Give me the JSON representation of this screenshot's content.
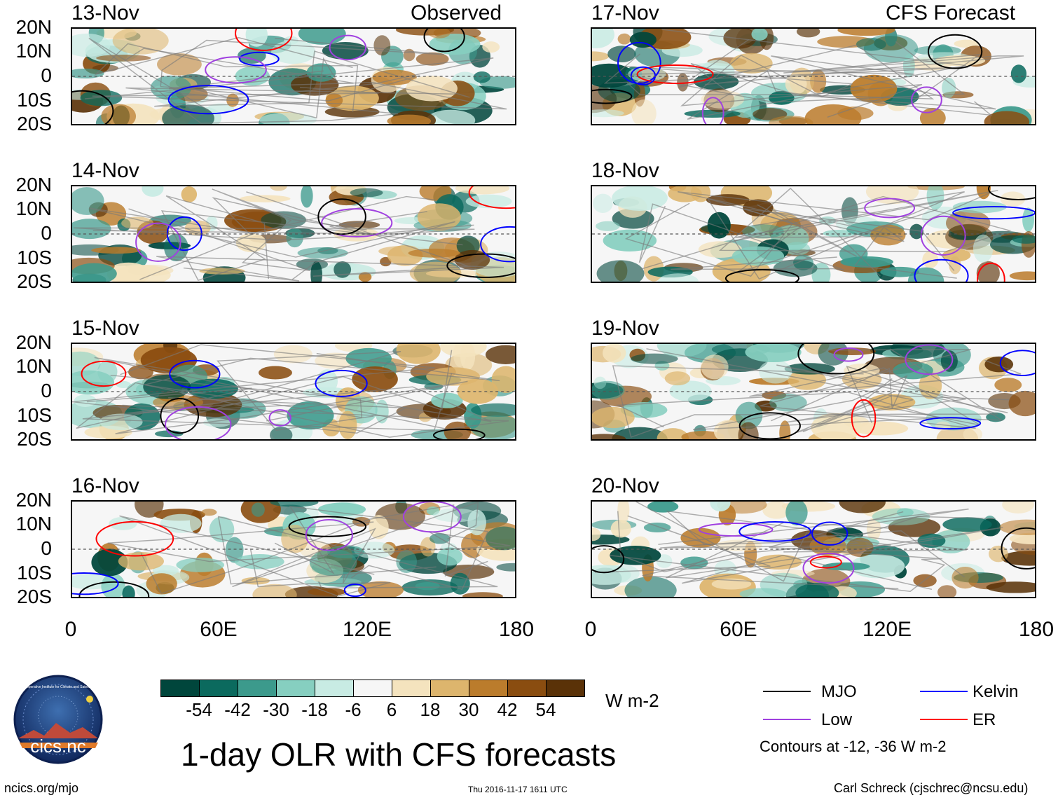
{
  "chart_data": {
    "type": "heatmap",
    "title": "1-day OLR with CFS forecasts",
    "columns": [
      {
        "title": "Observed",
        "dates": [
          "13-Nov",
          "14-Nov",
          "15-Nov",
          "16-Nov"
        ]
      },
      {
        "title": "CFS Forecast",
        "dates": [
          "17-Nov",
          "18-Nov",
          "19-Nov",
          "20-Nov"
        ]
      }
    ],
    "y_ticks": [
      "20N",
      "10N",
      "0",
      "10S",
      "20S"
    ],
    "x_ticks": [
      "0",
      "60E",
      "120E",
      "180"
    ],
    "xlim": [
      0,
      180
    ],
    "ylim": [
      -20,
      20
    ],
    "colorbar": {
      "ticks": [
        "-54",
        "-42",
        "-30",
        "-18",
        "-6",
        "6",
        "18",
        "30",
        "42",
        "54"
      ],
      "units": "W m-2",
      "colors": [
        "#00463c",
        "#0b6a5e",
        "#3c9a8c",
        "#86cfc0",
        "#c8ebe3",
        "#f6f6f6",
        "#f4e3be",
        "#ddb56d",
        "#bb7c2c",
        "#8a4d10",
        "#5a3208"
      ]
    },
    "legend": [
      {
        "label": "MJO",
        "color": "#000000"
      },
      {
        "label": "Kelvin",
        "color": "#0000ff"
      },
      {
        "label": "Low",
        "color": "#a040e0"
      },
      {
        "label": "ER",
        "color": "#ff0000"
      }
    ],
    "contour_note": "Contours at -12, -36 W m-2"
  },
  "footer": {
    "left": "ncics.org/mjo",
    "center": "Thu 2016-11-17 1611 UTC",
    "right": "Carl Schreck (cjschrec@ncsu.edu)"
  },
  "logo": {
    "name": "cics.nc",
    "ring_text": "Cooperative Institute for Climate and Satellites"
  }
}
